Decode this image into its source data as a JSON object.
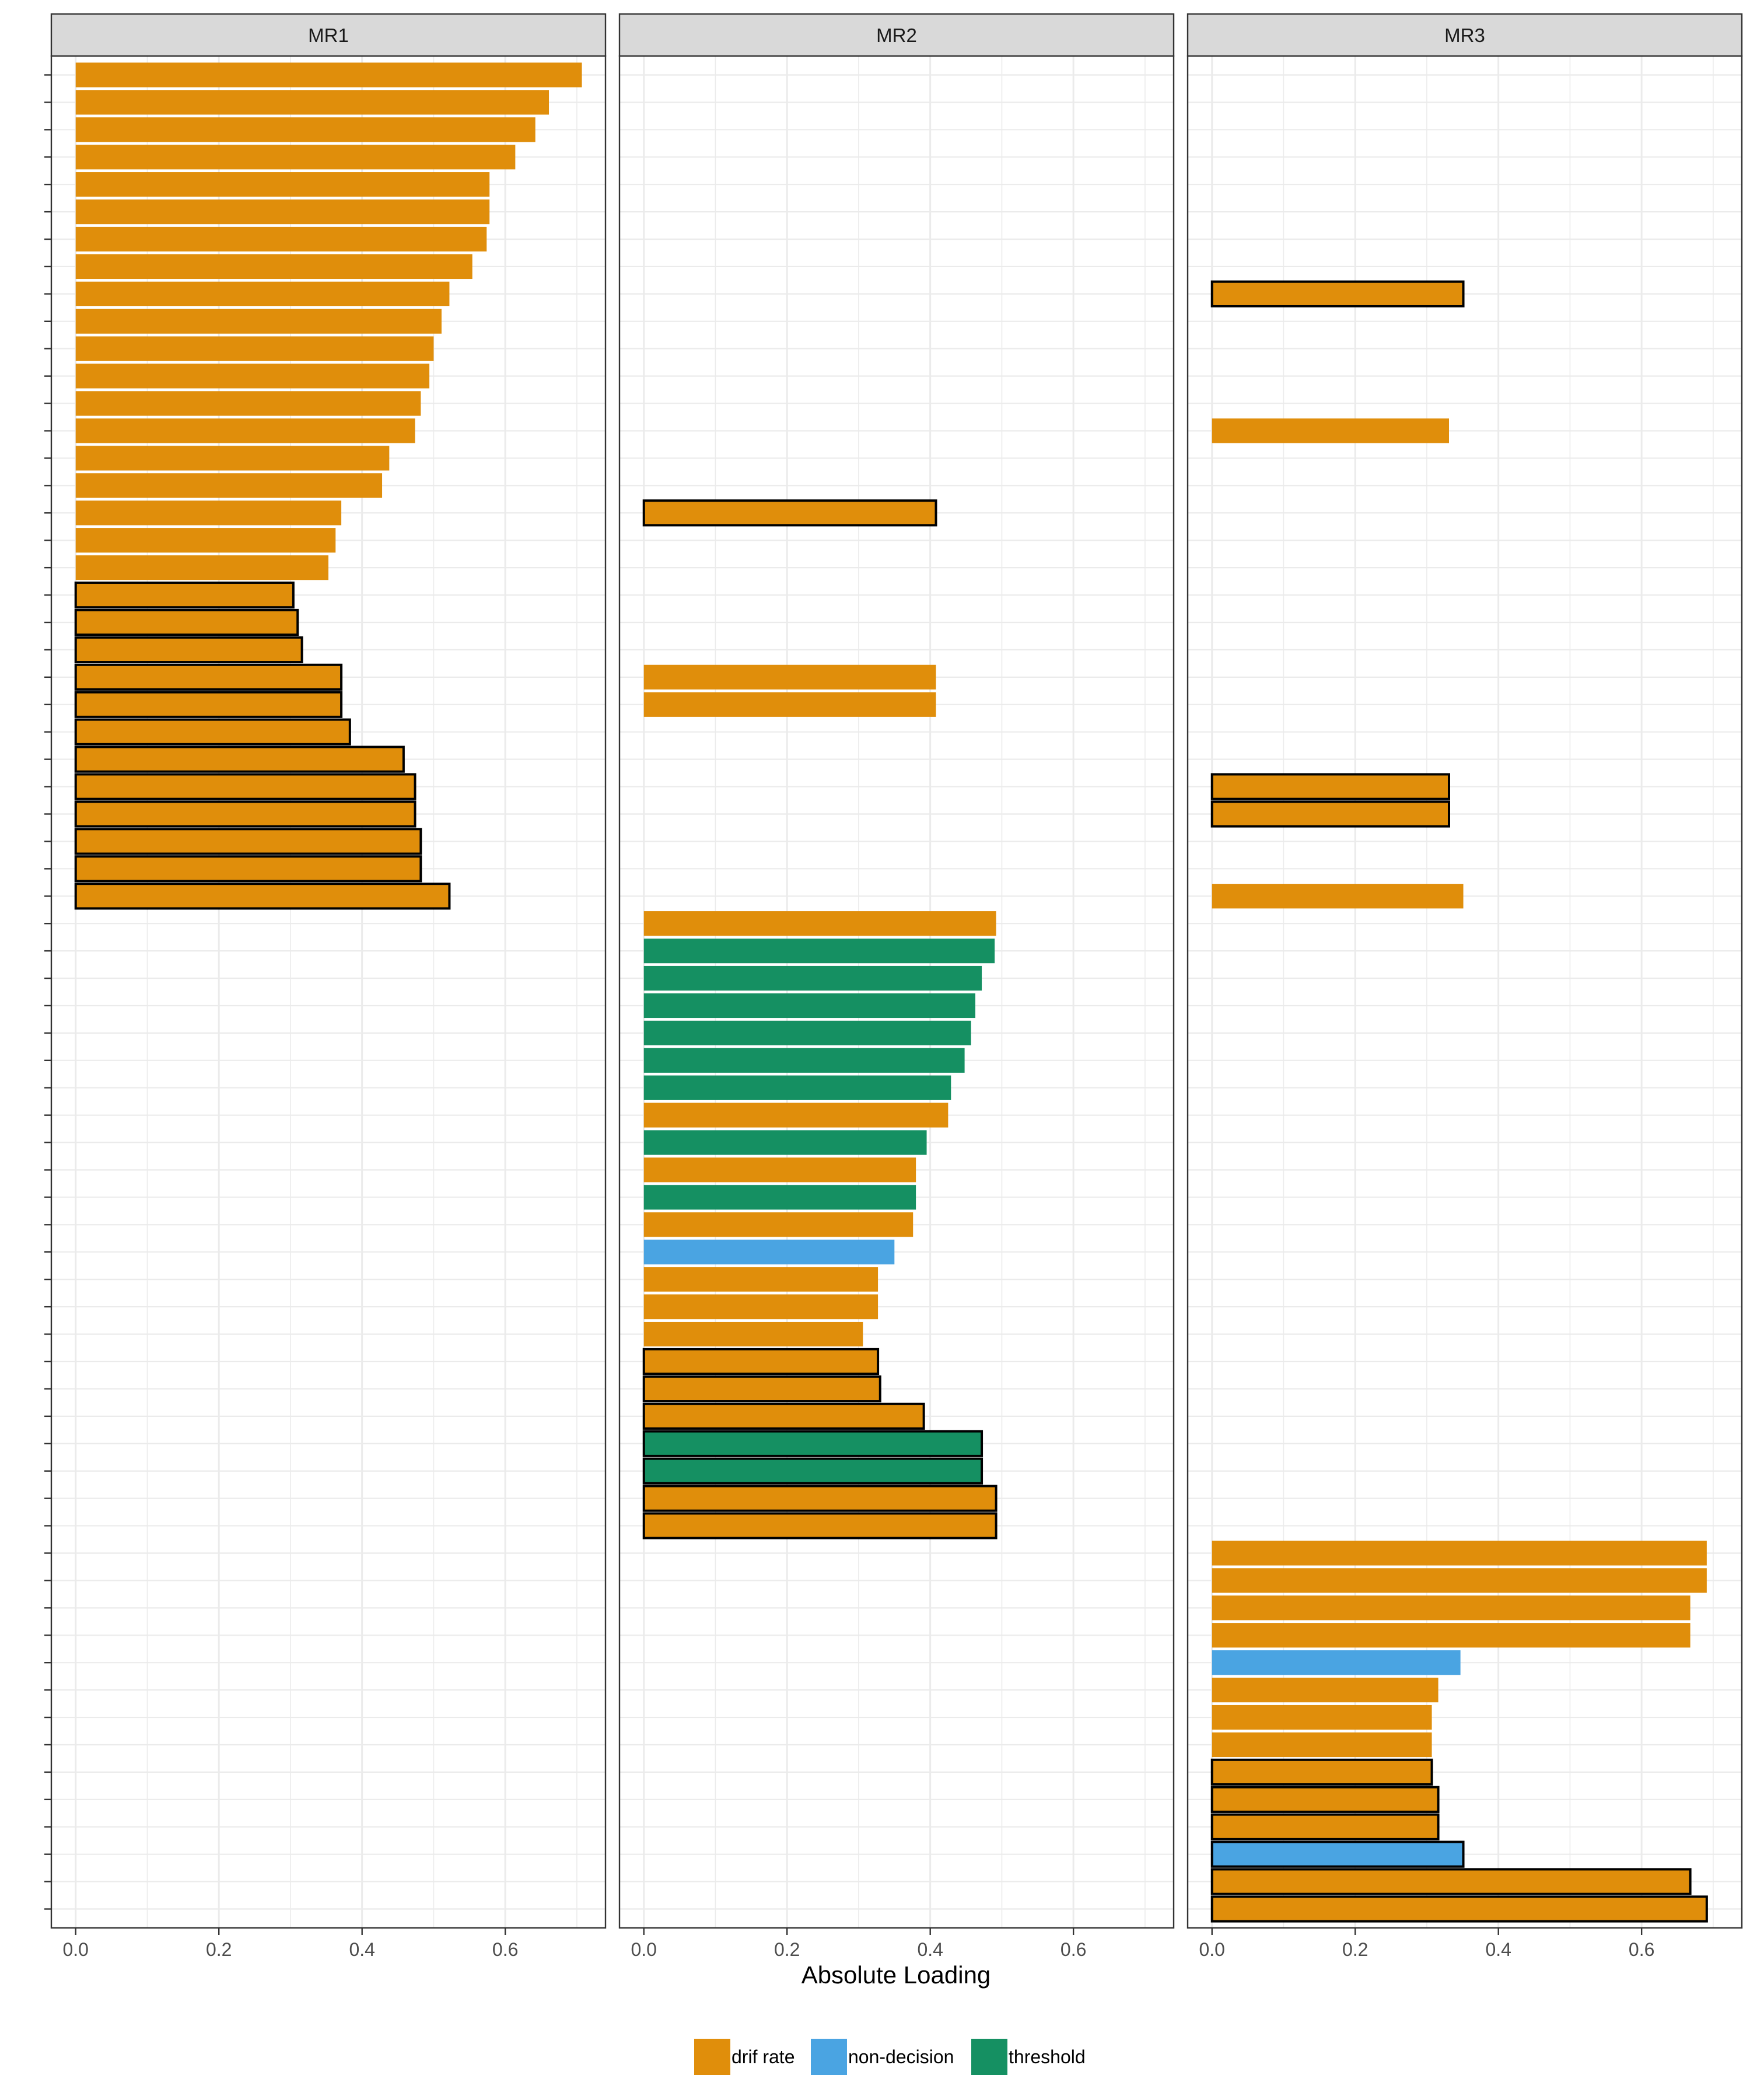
{
  "chart_data": {
    "type": "bar",
    "orientation": "horizontal",
    "xlabel": "Absolute Loading",
    "ylabel": "",
    "xlim": [
      -0.034,
      0.74
    ],
    "x_ticks": [
      "0.0",
      "0.2",
      "0.4",
      "0.6"
    ],
    "grid": true,
    "legend_position": "bottom",
    "n_rows": 68,
    "legend": [
      {
        "key": "drift",
        "label": "drif rate",
        "color": "#E08E0B"
      },
      {
        "key": "nondec",
        "label": "non-decision",
        "color": "#4AA4E2"
      },
      {
        "key": "thresh",
        "label": "threshold",
        "color": "#159062"
      }
    ],
    "series_colors": {
      "drift": "#E08E0B",
      "nondec": "#4AA4E2",
      "thresh": "#159062"
    },
    "panels": [
      {
        "title": "MR1",
        "bars": [
          {
            "row": 1,
            "value": 0.707,
            "type": "drift",
            "outlined": false
          },
          {
            "row": 2,
            "value": 0.661,
            "type": "drift",
            "outlined": false
          },
          {
            "row": 3,
            "value": 0.642,
            "type": "drift",
            "outlined": false
          },
          {
            "row": 4,
            "value": 0.614,
            "type": "drift",
            "outlined": false
          },
          {
            "row": 5,
            "value": 0.578,
            "type": "drift",
            "outlined": false
          },
          {
            "row": 6,
            "value": 0.578,
            "type": "drift",
            "outlined": false
          },
          {
            "row": 7,
            "value": 0.574,
            "type": "drift",
            "outlined": false
          },
          {
            "row": 8,
            "value": 0.554,
            "type": "drift",
            "outlined": false
          },
          {
            "row": 9,
            "value": 0.522,
            "type": "drift",
            "outlined": false
          },
          {
            "row": 10,
            "value": 0.511,
            "type": "drift",
            "outlined": false
          },
          {
            "row": 11,
            "value": 0.5,
            "type": "drift",
            "outlined": false
          },
          {
            "row": 12,
            "value": 0.494,
            "type": "drift",
            "outlined": false
          },
          {
            "row": 13,
            "value": 0.482,
            "type": "drift",
            "outlined": false
          },
          {
            "row": 14,
            "value": 0.474,
            "type": "drift",
            "outlined": false
          },
          {
            "row": 15,
            "value": 0.438,
            "type": "drift",
            "outlined": false
          },
          {
            "row": 16,
            "value": 0.428,
            "type": "drift",
            "outlined": false
          },
          {
            "row": 17,
            "value": 0.371,
            "type": "drift",
            "outlined": false
          },
          {
            "row": 18,
            "value": 0.363,
            "type": "drift",
            "outlined": false
          },
          {
            "row": 19,
            "value": 0.353,
            "type": "drift",
            "outlined": false
          },
          {
            "row": 20,
            "value": 0.304,
            "type": "drift",
            "outlined": true
          },
          {
            "row": 21,
            "value": 0.31,
            "type": "drift",
            "outlined": true
          },
          {
            "row": 22,
            "value": 0.316,
            "type": "drift",
            "outlined": true
          },
          {
            "row": 23,
            "value": 0.371,
            "type": "drift",
            "outlined": true
          },
          {
            "row": 24,
            "value": 0.371,
            "type": "drift",
            "outlined": true
          },
          {
            "row": 25,
            "value": 0.383,
            "type": "drift",
            "outlined": true
          },
          {
            "row": 26,
            "value": 0.458,
            "type": "drift",
            "outlined": true
          },
          {
            "row": 27,
            "value": 0.474,
            "type": "drift",
            "outlined": true
          },
          {
            "row": 28,
            "value": 0.474,
            "type": "drift",
            "outlined": true
          },
          {
            "row": 29,
            "value": 0.482,
            "type": "drift",
            "outlined": true
          },
          {
            "row": 30,
            "value": 0.482,
            "type": "drift",
            "outlined": true
          },
          {
            "row": 31,
            "value": 0.522,
            "type": "drift",
            "outlined": true
          }
        ]
      },
      {
        "title": "MR2",
        "bars": [
          {
            "row": 17,
            "value": 0.408,
            "type": "drift",
            "outlined": true
          },
          {
            "row": 23,
            "value": 0.408,
            "type": "drift",
            "outlined": false
          },
          {
            "row": 24,
            "value": 0.408,
            "type": "drift",
            "outlined": false
          },
          {
            "row": 32,
            "value": 0.492,
            "type": "drift",
            "outlined": false
          },
          {
            "row": 33,
            "value": 0.49,
            "type": "thresh",
            "outlined": false
          },
          {
            "row": 34,
            "value": 0.472,
            "type": "thresh",
            "outlined": false
          },
          {
            "row": 35,
            "value": 0.463,
            "type": "thresh",
            "outlined": false
          },
          {
            "row": 36,
            "value": 0.457,
            "type": "thresh",
            "outlined": false
          },
          {
            "row": 37,
            "value": 0.448,
            "type": "thresh",
            "outlined": false
          },
          {
            "row": 38,
            "value": 0.429,
            "type": "thresh",
            "outlined": false
          },
          {
            "row": 39,
            "value": 0.425,
            "type": "drift",
            "outlined": false
          },
          {
            "row": 40,
            "value": 0.395,
            "type": "thresh",
            "outlined": false
          },
          {
            "row": 41,
            "value": 0.38,
            "type": "drift",
            "outlined": false
          },
          {
            "row": 42,
            "value": 0.38,
            "type": "thresh",
            "outlined": false
          },
          {
            "row": 43,
            "value": 0.376,
            "type": "drift",
            "outlined": false
          },
          {
            "row": 44,
            "value": 0.35,
            "type": "nondec",
            "outlined": false
          },
          {
            "row": 45,
            "value": 0.327,
            "type": "drift",
            "outlined": false
          },
          {
            "row": 46,
            "value": 0.327,
            "type": "drift",
            "outlined": false
          },
          {
            "row": 47,
            "value": 0.306,
            "type": "drift",
            "outlined": false
          },
          {
            "row": 48,
            "value": 0.327,
            "type": "drift",
            "outlined": true
          },
          {
            "row": 49,
            "value": 0.33,
            "type": "drift",
            "outlined": true
          },
          {
            "row": 50,
            "value": 0.391,
            "type": "drift",
            "outlined": true
          },
          {
            "row": 51,
            "value": 0.472,
            "type": "thresh",
            "outlined": true
          },
          {
            "row": 52,
            "value": 0.472,
            "type": "thresh",
            "outlined": true
          },
          {
            "row": 53,
            "value": 0.492,
            "type": "drift",
            "outlined": true
          },
          {
            "row": 54,
            "value": 0.492,
            "type": "drift",
            "outlined": true
          }
        ]
      },
      {
        "title": "MR3",
        "bars": [
          {
            "row": 9,
            "value": 0.351,
            "type": "drift",
            "outlined": true
          },
          {
            "row": 14,
            "value": 0.331,
            "type": "drift",
            "outlined": false
          },
          {
            "row": 27,
            "value": 0.331,
            "type": "drift",
            "outlined": true
          },
          {
            "row": 28,
            "value": 0.331,
            "type": "drift",
            "outlined": true
          },
          {
            "row": 31,
            "value": 0.351,
            "type": "drift",
            "outlined": false
          },
          {
            "row": 55,
            "value": 0.691,
            "type": "drift",
            "outlined": false
          },
          {
            "row": 56,
            "value": 0.691,
            "type": "drift",
            "outlined": false
          },
          {
            "row": 57,
            "value": 0.668,
            "type": "drift",
            "outlined": false
          },
          {
            "row": 58,
            "value": 0.668,
            "type": "drift",
            "outlined": false
          },
          {
            "row": 59,
            "value": 0.347,
            "type": "nondec",
            "outlined": false
          },
          {
            "row": 60,
            "value": 0.316,
            "type": "drift",
            "outlined": false
          },
          {
            "row": 61,
            "value": 0.307,
            "type": "drift",
            "outlined": false
          },
          {
            "row": 62,
            "value": 0.307,
            "type": "drift",
            "outlined": false
          },
          {
            "row": 63,
            "value": 0.307,
            "type": "drift",
            "outlined": true
          },
          {
            "row": 64,
            "value": 0.316,
            "type": "drift",
            "outlined": true
          },
          {
            "row": 65,
            "value": 0.316,
            "type": "drift",
            "outlined": true
          },
          {
            "row": 66,
            "value": 0.351,
            "type": "nondec",
            "outlined": true
          },
          {
            "row": 67,
            "value": 0.668,
            "type": "drift",
            "outlined": true
          },
          {
            "row": 68,
            "value": 0.691,
            "type": "drift",
            "outlined": true
          }
        ]
      }
    ]
  }
}
